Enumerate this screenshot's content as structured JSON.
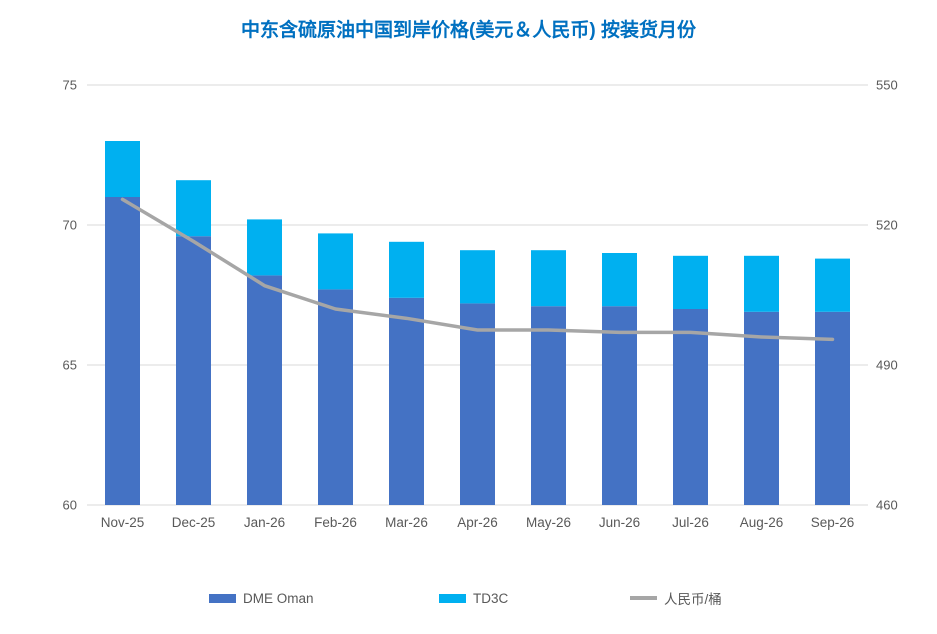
{
  "chart_data": {
    "type": "bar",
    "subtype": "stacked-bars-with-line-overlay",
    "title": "中东含硫原油中国到岸价格(美元＆人民币) 按装货月份",
    "title_color": "#0070C0",
    "categories": [
      "Nov-25",
      "Dec-25",
      "Jan-26",
      "Feb-26",
      "Mar-26",
      "Apr-26",
      "May-26",
      "Jun-26",
      "Jul-26",
      "Aug-26",
      "Sep-26"
    ],
    "series": [
      {
        "name": "DME Oman",
        "render": "bar",
        "stack": "usd",
        "axis": "left",
        "color": "#4472C4",
        "values": [
          71.0,
          69.6,
          68.2,
          67.7,
          67.4,
          67.2,
          67.1,
          67.1,
          67.0,
          66.9,
          66.9
        ]
      },
      {
        "name": "TD3C",
        "render": "bar",
        "stack": "usd",
        "axis": "left",
        "color": "#00B0F0",
        "values": [
          2.0,
          2.0,
          2.0,
          2.0,
          2.0,
          1.9,
          2.0,
          1.9,
          1.9,
          2.0,
          1.9
        ]
      },
      {
        "name": "人民币/桶",
        "render": "line",
        "axis": "right",
        "color": "#A6A6A6",
        "values": [
          525.5,
          516.5,
          507,
          502,
          500,
          497.5,
          497.5,
          497,
          497,
          496,
          495.5
        ]
      }
    ],
    "left_axis": {
      "min": 60,
      "max": 75,
      "ticks": [
        60,
        65,
        70,
        75
      ]
    },
    "right_axis": {
      "min": 460,
      "max": 550,
      "ticks": [
        460,
        490,
        520,
        550
      ]
    },
    "grid": true,
    "gridline_color": "#D9D9D9",
    "tick_label_color": "#595959",
    "legend_position": "bottom",
    "legend": [
      "DME Oman",
      "TD3C",
      "人民币/桶"
    ]
  }
}
